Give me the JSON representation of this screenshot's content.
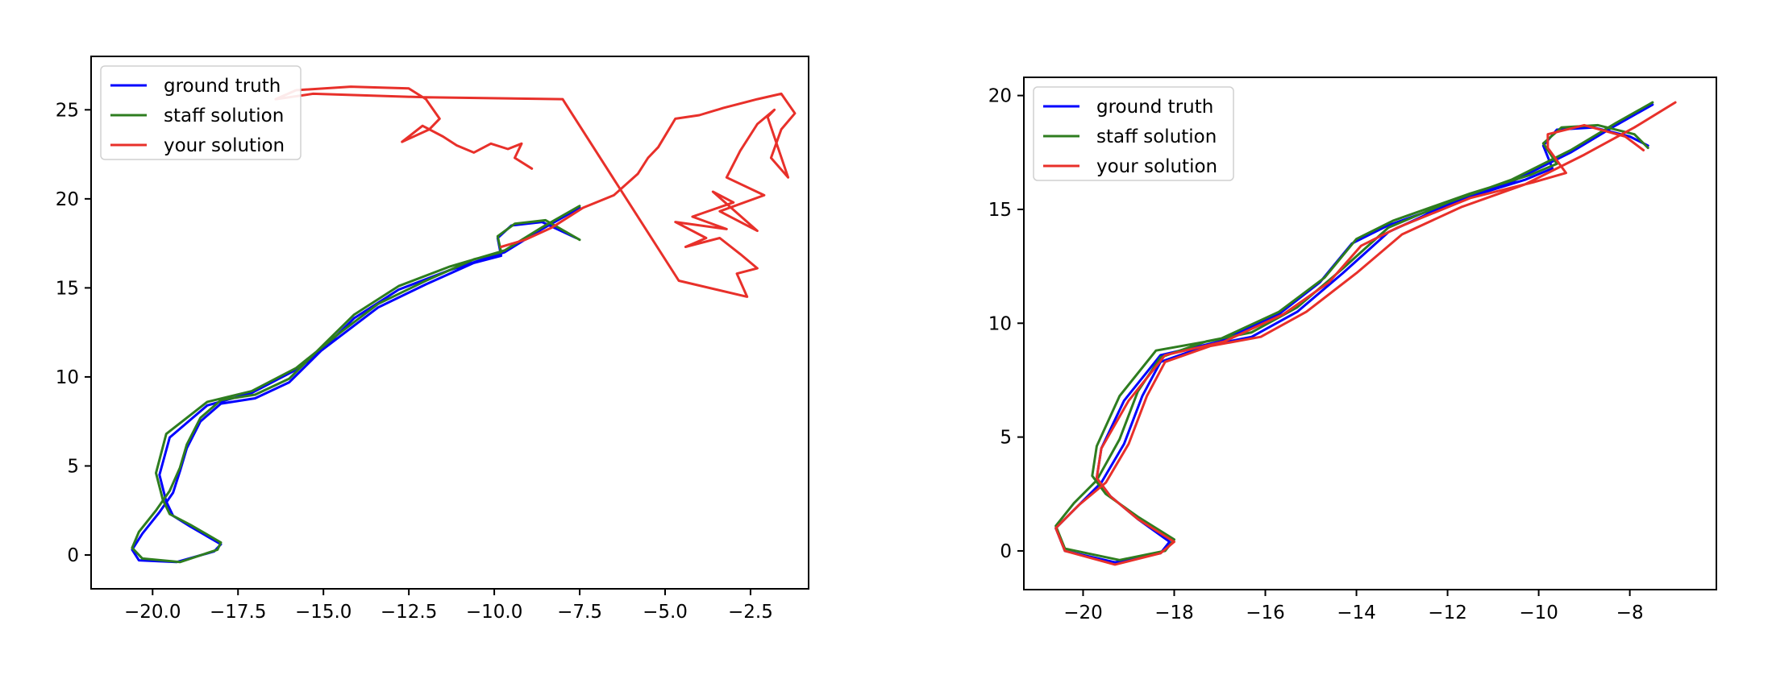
{
  "chart_data": [
    {
      "type": "line",
      "title": "",
      "xlabel": "",
      "ylabel": "",
      "xlim": [
        -21.8,
        -0.8
      ],
      "ylim": [
        -1.9,
        28
      ],
      "xticks": [
        -20.0,
        -17.5,
        -15.0,
        -12.5,
        -10.0,
        -7.5,
        -5.0,
        -2.5
      ],
      "xtick_labels": [
        "−20.0",
        "−17.5",
        "−15.0",
        "−12.5",
        "−10.0",
        "−7.5",
        "−5.0",
        "−2.5"
      ],
      "yticks": [
        0,
        5,
        10,
        15,
        20,
        25
      ],
      "ytick_labels": [
        "0",
        "5",
        "10",
        "15",
        "20",
        "25"
      ],
      "legend_position": "top-left",
      "series": [
        {
          "name": "ground truth",
          "color": "#0000ff",
          "x": [
            -7.5,
            -8.6,
            -9.7,
            -11.3,
            -12.8,
            -14.1,
            -15.0,
            -16.0,
            -17.0,
            -18.0,
            -18.6,
            -19.0,
            -19.2,
            -19.4,
            -19.8,
            -20.3,
            -20.6,
            -20.4,
            -19.3,
            -18.2,
            -18.0,
            -18.9,
            -19.4,
            -19.6,
            -19.8,
            -19.5,
            -18.4,
            -17.1,
            -15.8,
            -14.5,
            -13.4,
            -12.0,
            -10.6,
            -9.8,
            -9.9,
            -9.5,
            -8.6,
            -7.6
          ],
          "y": [
            19.5,
            18.3,
            17.0,
            16.0,
            14.9,
            13.3,
            11.6,
            9.7,
            8.8,
            8.5,
            7.5,
            6.0,
            4.7,
            3.5,
            2.4,
            1.2,
            0.3,
            -0.3,
            -0.4,
            0.2,
            0.6,
            1.6,
            2.2,
            3.0,
            4.5,
            6.6,
            8.4,
            9.1,
            10.4,
            12.3,
            13.9,
            15.2,
            16.4,
            16.8,
            17.8,
            18.5,
            18.7,
            17.8
          ]
        },
        {
          "name": "staff solution",
          "color": "#2e7d1f",
          "x": [
            -7.5,
            -8.6,
            -9.7,
            -11.3,
            -12.8,
            -14.1,
            -15.0,
            -16.0,
            -17.0,
            -18.0,
            -18.6,
            -19.0,
            -19.2,
            -19.5,
            -19.9,
            -20.4,
            -20.6,
            -20.3,
            -19.2,
            -18.1,
            -18.0,
            -18.9,
            -19.5,
            -19.7,
            -19.9,
            -19.6,
            -18.4,
            -17.1,
            -15.8,
            -14.5,
            -13.4,
            -12.0,
            -10.6,
            -9.8,
            -9.9,
            -9.4,
            -8.5,
            -7.5
          ],
          "y": [
            19.6,
            18.4,
            17.1,
            16.2,
            15.1,
            13.5,
            11.8,
            9.9,
            9.0,
            8.7,
            7.7,
            6.2,
            4.9,
            3.6,
            2.5,
            1.3,
            0.4,
            -0.2,
            -0.4,
            0.3,
            0.7,
            1.7,
            2.3,
            3.1,
            4.6,
            6.8,
            8.6,
            9.2,
            10.5,
            12.5,
            14.1,
            15.4,
            16.6,
            17.0,
            17.9,
            18.6,
            18.8,
            17.7
          ]
        },
        {
          "name": "your solution",
          "color": "#e8302a",
          "x": [
            -9.8,
            -9.1,
            -8.3,
            -7.4,
            -6.5,
            -5.8,
            -5.5,
            -5.2,
            -4.7,
            -4.0,
            -3.3,
            -2.3,
            -1.6,
            -1.2,
            -1.6,
            -1.9,
            -1.4,
            -2.0,
            -1.8,
            -2.3,
            -2.8,
            -3.2,
            -2.1,
            -3.4,
            -2.3,
            -3.6,
            -3.0,
            -4.2,
            -3.2,
            -4.7,
            -3.8,
            -4.4,
            -3.4,
            -2.8,
            -2.3,
            -2.9,
            -2.6,
            -4.6,
            -8.0,
            -12.0,
            -15.3,
            -16.4,
            -15.8,
            -14.2,
            -12.5,
            -12.0,
            -11.6,
            -11.9,
            -12.7,
            -12.1,
            -11.5,
            -11.1,
            -10.6,
            -10.1,
            -9.6,
            -9.2,
            -9.4,
            -8.9
          ],
          "y": [
            17.3,
            17.7,
            18.4,
            19.5,
            20.2,
            21.4,
            22.3,
            22.9,
            24.5,
            24.7,
            25.1,
            25.6,
            25.9,
            24.8,
            23.9,
            22.3,
            21.2,
            24.6,
            25.0,
            24.2,
            22.7,
            21.2,
            20.2,
            19.3,
            18.2,
            20.4,
            19.8,
            19.0,
            18.3,
            18.7,
            17.8,
            17.3,
            17.8,
            16.9,
            16.1,
            15.8,
            14.5,
            15.4,
            25.6,
            25.7,
            25.9,
            25.6,
            26.1,
            26.3,
            26.2,
            25.6,
            24.5,
            23.9,
            23.2,
            24.1,
            23.5,
            23.0,
            22.6,
            23.1,
            22.8,
            23.1,
            22.3,
            21.7
          ]
        }
      ]
    },
    {
      "type": "line",
      "title": "",
      "xlabel": "",
      "ylabel": "",
      "xlim": [
        -21.3,
        -6.1
      ],
      "ylim": [
        -1.7,
        20.8
      ],
      "xticks": [
        -20,
        -18,
        -16,
        -14,
        -12,
        -10,
        -8
      ],
      "xtick_labels": [
        "−20",
        "−18",
        "−16",
        "−14",
        "−12",
        "−10",
        "−8"
      ],
      "yticks": [
        0,
        5,
        10,
        15,
        20
      ],
      "ytick_labels": [
        "0",
        "5",
        "10",
        "15",
        "20"
      ],
      "legend_position": "top-left",
      "series": [
        {
          "name": "ground truth",
          "color": "#0000ff",
          "x": [
            -7.5,
            -8.3,
            -9.3,
            -10.6,
            -12.0,
            -13.3,
            -14.3,
            -15.3,
            -16.3,
            -17.3,
            -18.3,
            -18.7,
            -19.1,
            -19.6,
            -20.1,
            -20.6,
            -20.4,
            -19.3,
            -18.3,
            -18.1,
            -18.8,
            -19.4,
            -19.7,
            -19.6,
            -19.1,
            -18.3,
            -17.0,
            -15.7,
            -14.8,
            -14.1,
            -13.3,
            -11.6,
            -10.3,
            -9.7,
            -9.9,
            -9.6,
            -8.8,
            -8.0,
            -7.6
          ],
          "y": [
            19.6,
            18.7,
            17.5,
            16.2,
            15.2,
            14.0,
            12.2,
            10.5,
            9.4,
            9.0,
            8.3,
            6.8,
            4.7,
            3.0,
            2.0,
            1.0,
            0.0,
            -0.5,
            -0.1,
            0.4,
            1.4,
            2.4,
            3.2,
            4.5,
            6.6,
            8.6,
            9.2,
            10.4,
            11.8,
            13.5,
            14.3,
            15.5,
            16.3,
            16.8,
            17.8,
            18.5,
            18.6,
            18.2,
            17.8
          ]
        },
        {
          "name": "staff solution",
          "color": "#2e7d1f",
          "x": [
            -7.5,
            -8.3,
            -9.3,
            -10.6,
            -12.0,
            -13.3,
            -14.3,
            -15.3,
            -16.3,
            -17.3,
            -18.3,
            -18.8,
            -19.2,
            -19.7,
            -20.2,
            -20.6,
            -20.4,
            -19.2,
            -18.2,
            -18.0,
            -18.8,
            -19.5,
            -19.8,
            -19.7,
            -19.2,
            -18.4,
            -17.0,
            -15.7,
            -14.7,
            -14.0,
            -13.2,
            -11.5,
            -10.2,
            -9.6,
            -9.9,
            -9.5,
            -8.7,
            -7.9,
            -7.6
          ],
          "y": [
            19.7,
            18.8,
            17.6,
            16.3,
            15.3,
            14.2,
            12.4,
            10.7,
            9.6,
            9.2,
            8.5,
            7.0,
            4.9,
            3.1,
            2.1,
            1.1,
            0.1,
            -0.4,
            0.0,
            0.5,
            1.5,
            2.5,
            3.3,
            4.6,
            6.8,
            8.8,
            9.3,
            10.5,
            12.0,
            13.7,
            14.5,
            15.7,
            16.5,
            17.0,
            17.9,
            18.6,
            18.7,
            18.3,
            17.7
          ]
        },
        {
          "name": "your solution",
          "color": "#e8302a",
          "x": [
            -7.0,
            -7.9,
            -9.0,
            -10.3,
            -11.7,
            -13.0,
            -14.0,
            -15.1,
            -16.1,
            -17.2,
            -18.2,
            -18.6,
            -19.0,
            -19.5,
            -20.1,
            -20.6,
            -20.4,
            -19.3,
            -18.3,
            -18.0,
            -18.8,
            -19.4,
            -19.7,
            -19.6,
            -19.0,
            -18.2,
            -16.9,
            -15.6,
            -14.6,
            -13.9,
            -13.1,
            -11.5,
            -10.1,
            -9.4,
            -9.8,
            -9.8,
            -9.0,
            -8.1,
            -7.7
          ],
          "y": [
            19.7,
            18.6,
            17.4,
            16.1,
            15.1,
            13.9,
            12.2,
            10.5,
            9.4,
            9.0,
            8.3,
            6.8,
            4.7,
            3.0,
            2.0,
            1.0,
            0.0,
            -0.6,
            -0.1,
            0.4,
            1.4,
            2.4,
            3.2,
            4.5,
            6.6,
            8.6,
            9.2,
            10.4,
            11.8,
            13.4,
            14.2,
            15.5,
            16.2,
            16.6,
            17.7,
            18.3,
            18.7,
            18.2,
            17.6
          ]
        }
      ]
    }
  ]
}
